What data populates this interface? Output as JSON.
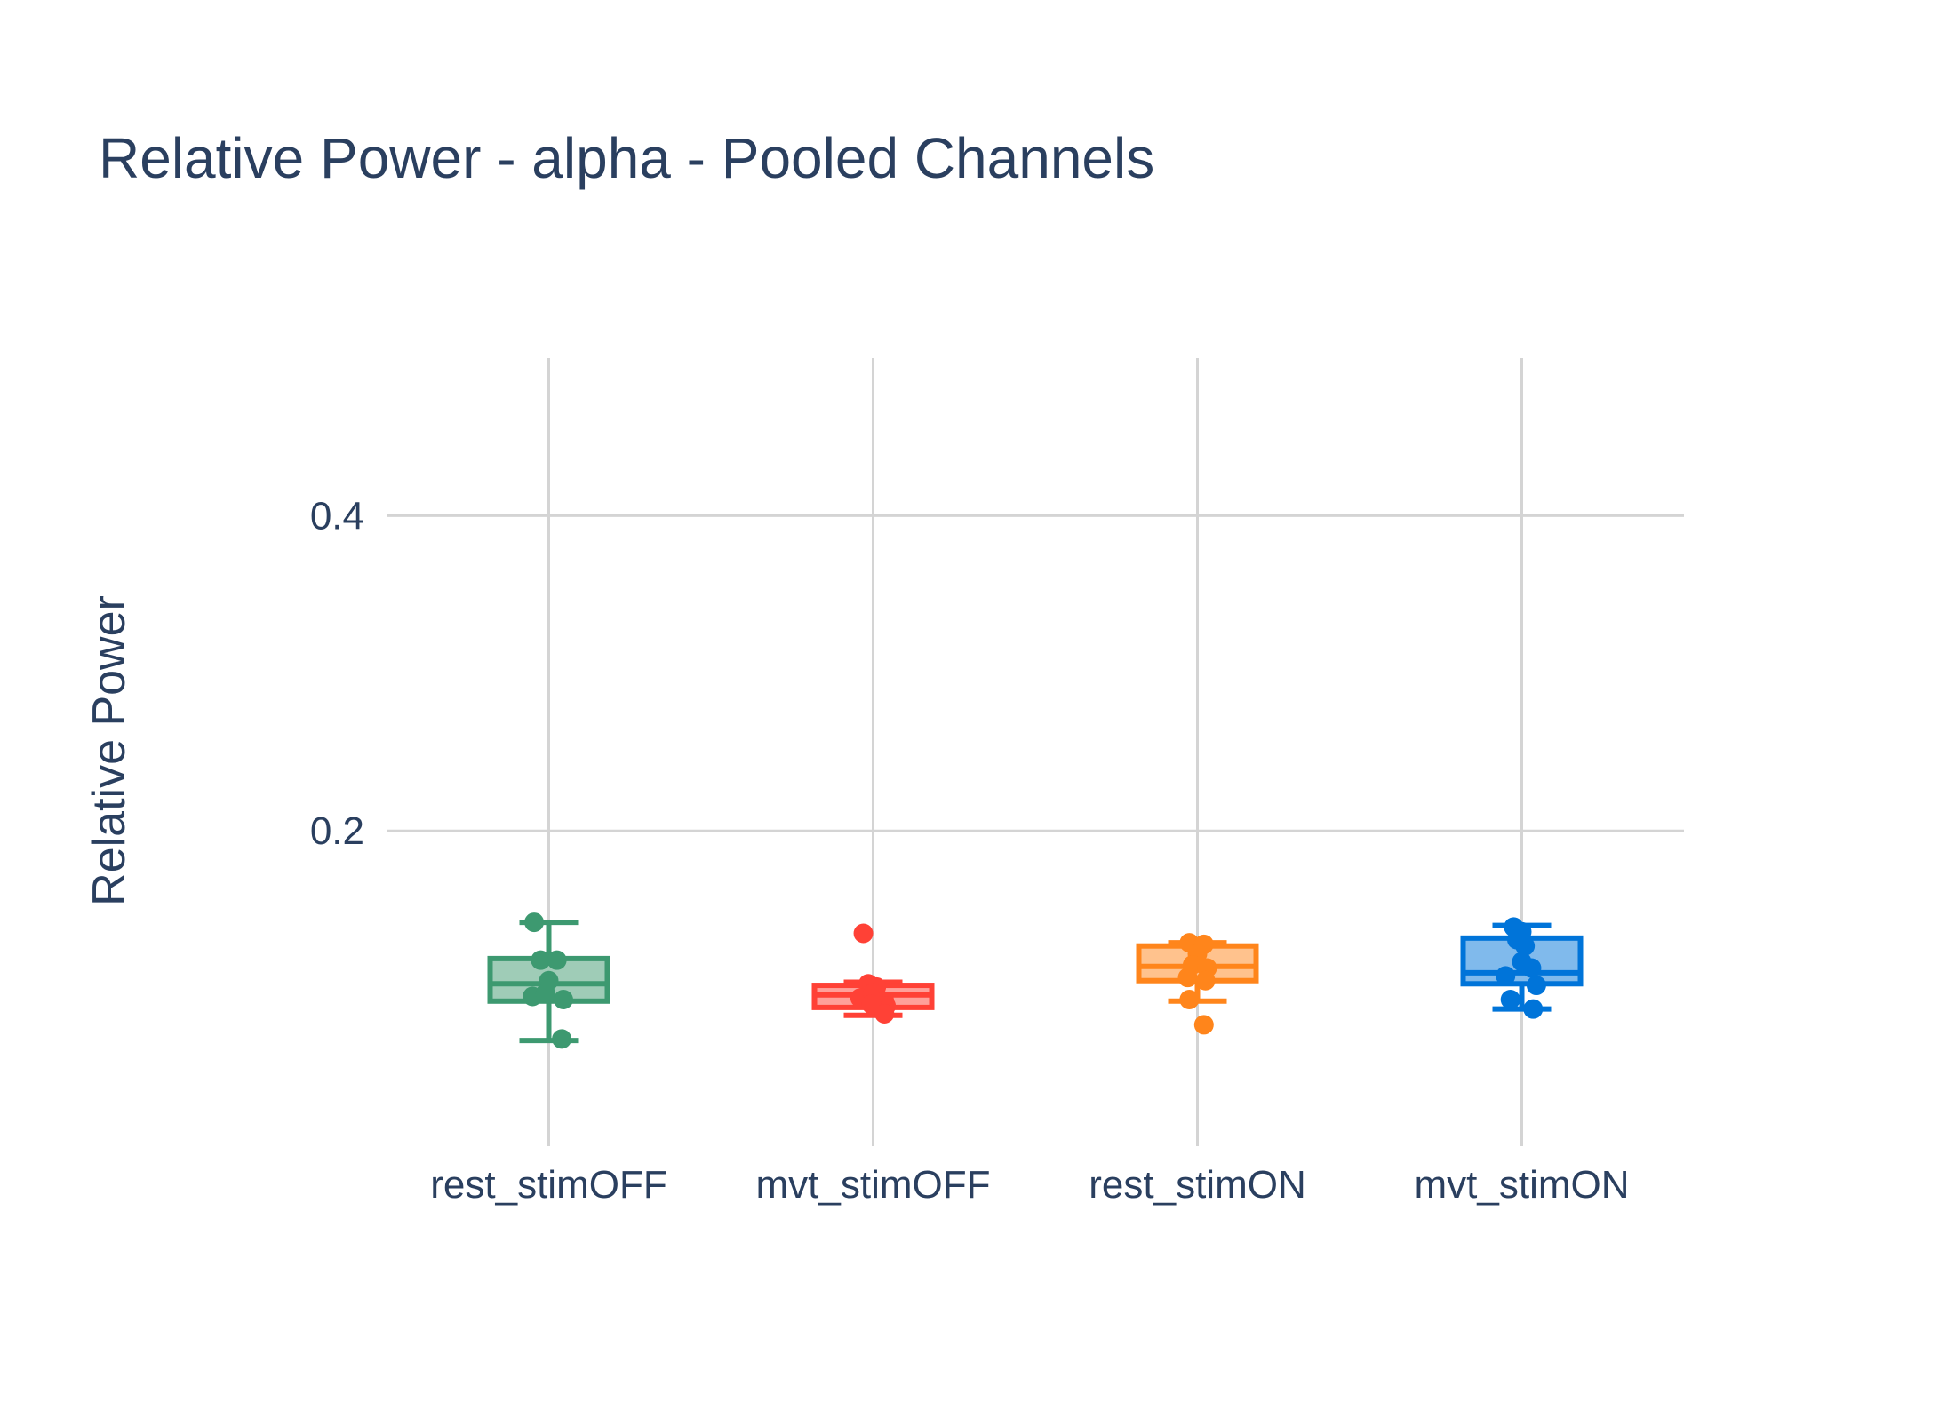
{
  "chart_data": {
    "type": "box",
    "title": "Relative Power - alpha - Pooled Channels",
    "xlabel": "",
    "ylabel": "Relative Power",
    "ylim": [
      0.0,
      0.5
    ],
    "yticks": [
      0.2,
      0.4
    ],
    "ytick_labels": [
      "0.2",
      "0.4"
    ],
    "grid": true,
    "legend": false,
    "categories": [
      "rest_stimOFF",
      "mvt_stimOFF",
      "rest_stimON",
      "mvt_stimON"
    ],
    "series": [
      {
        "category": "rest_stimOFF",
        "color": "#3d9970",
        "fill": "#9fccb7",
        "min": 0.067,
        "q1": 0.092,
        "median": 0.103,
        "q3": 0.119,
        "max": 0.142,
        "points": [
          {
            "x": -0.045,
            "y": 0.142
          },
          {
            "x": -0.025,
            "y": 0.118
          },
          {
            "x": 0.025,
            "y": 0.118
          },
          {
            "x": 0.0,
            "y": 0.105
          },
          {
            "x": -0.05,
            "y": 0.095
          },
          {
            "x": -0.01,
            "y": 0.097
          },
          {
            "x": 0.045,
            "y": 0.093
          },
          {
            "x": 0.04,
            "y": 0.068
          }
        ]
      },
      {
        "category": "mvt_stimOFF",
        "color": "#ff4136",
        "fill": "#ffa09a",
        "min": 0.083,
        "q1": 0.088,
        "median": 0.096,
        "q3": 0.102,
        "max": 0.104,
        "points": [
          {
            "x": -0.03,
            "y": 0.135
          },
          {
            "x": -0.015,
            "y": 0.103
          },
          {
            "x": 0.01,
            "y": 0.101
          },
          {
            "x": -0.04,
            "y": 0.094
          },
          {
            "x": 0.0,
            "y": 0.097
          },
          {
            "x": 0.035,
            "y": 0.092
          },
          {
            "x": 0.04,
            "y": 0.089
          },
          {
            "x": -0.005,
            "y": 0.09
          },
          {
            "x": 0.035,
            "y": 0.084
          }
        ]
      },
      {
        "category": "rest_stimON",
        "color": "#ff851b",
        "fill": "#ffc28d",
        "min": 0.092,
        "q1": 0.105,
        "median": 0.114,
        "q3": 0.127,
        "max": 0.129,
        "points": [
          {
            "x": -0.025,
            "y": 0.129
          },
          {
            "x": 0.02,
            "y": 0.128
          },
          {
            "x": 0.0,
            "y": 0.122
          },
          {
            "x": -0.015,
            "y": 0.115
          },
          {
            "x": 0.03,
            "y": 0.113
          },
          {
            "x": -0.03,
            "y": 0.107
          },
          {
            "x": 0.025,
            "y": 0.105
          },
          {
            "x": -0.025,
            "y": 0.093
          },
          {
            "x": 0.02,
            "y": 0.077
          }
        ]
      },
      {
        "category": "mvt_stimON",
        "color": "#0074d9",
        "fill": "#80baec",
        "min": 0.087,
        "q1": 0.103,
        "median": 0.11,
        "q3": 0.132,
        "max": 0.14,
        "points": [
          {
            "x": -0.025,
            "y": 0.139
          },
          {
            "x": 0.0,
            "y": 0.136
          },
          {
            "x": -0.015,
            "y": 0.131
          },
          {
            "x": 0.01,
            "y": 0.127
          },
          {
            "x": 0.0,
            "y": 0.117
          },
          {
            "x": 0.03,
            "y": 0.113
          },
          {
            "x": -0.05,
            "y": 0.108
          },
          {
            "x": 0.045,
            "y": 0.102
          },
          {
            "x": -0.035,
            "y": 0.093
          },
          {
            "x": 0.035,
            "y": 0.087
          }
        ]
      }
    ]
  }
}
